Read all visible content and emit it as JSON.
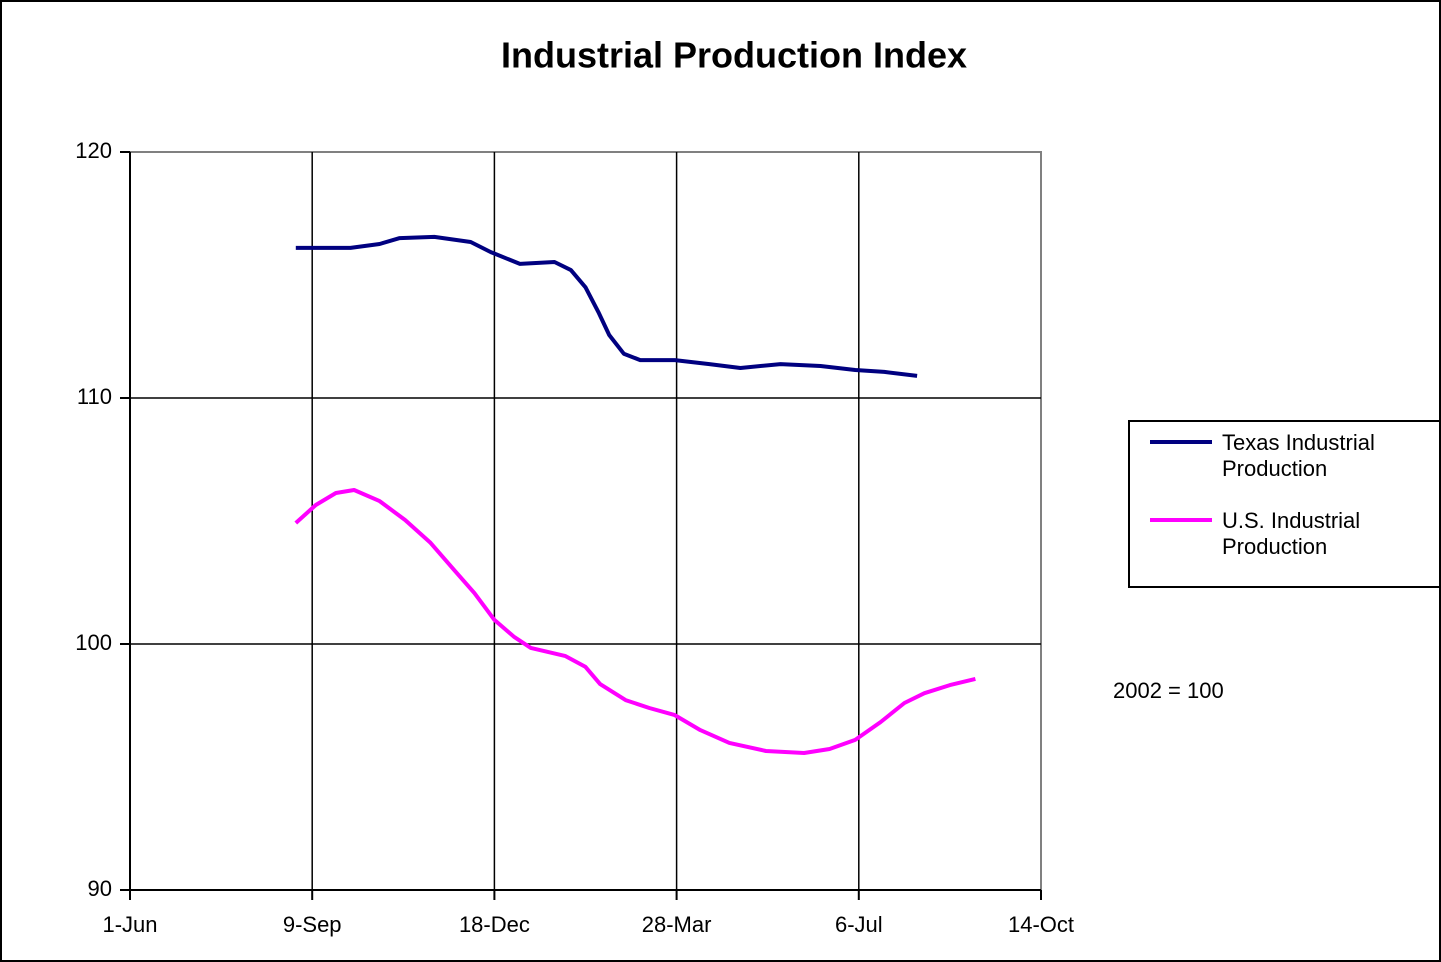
{
  "chart_data": {
    "type": "line",
    "title": "Industrial Production Index",
    "annotation": "2002 = 100",
    "xlim": [
      0,
      500
    ],
    "xticks": [
      {
        "value": 0,
        "label": "1-Jun"
      },
      {
        "value": 100,
        "label": "9-Sep"
      },
      {
        "value": 200,
        "label": "18-Dec"
      },
      {
        "value": 300,
        "label": "28-Mar"
      },
      {
        "value": 400,
        "label": "6-Jul"
      },
      {
        "value": 500,
        "label": "14-Oct"
      }
    ],
    "ylim": [
      90,
      120
    ],
    "yticks": [
      90,
      100,
      110,
      120
    ],
    "grid": true,
    "legend": "right",
    "series": [
      {
        "name": "Texas Industrial Production",
        "color": "#000080",
        "x": [
          91,
          121,
          137,
          148,
          167,
          187,
          198,
          214,
          233,
          242,
          250,
          257,
          263,
          271,
          280,
          299,
          318,
          335,
          357,
          379,
          398,
          414,
          432
        ],
        "values": [
          116.1,
          116.1,
          116.26,
          116.5,
          116.55,
          116.34,
          115.93,
          115.45,
          115.53,
          115.2,
          114.5,
          113.5,
          112.56,
          111.8,
          111.54,
          111.54,
          111.38,
          111.22,
          111.38,
          111.3,
          111.14,
          111.06,
          110.9
        ]
      },
      {
        "name": "U.S. Industrial Production",
        "color": "#ff00ff",
        "x": [
          91,
          102,
          113,
          123,
          137,
          151,
          165,
          178,
          189,
          200,
          211,
          220,
          239,
          250,
          258,
          272,
          285,
          299,
          313,
          329,
          349,
          370,
          384,
          398,
          412,
          425,
          436,
          450,
          464
        ],
        "values": [
          104.92,
          105.65,
          106.14,
          106.26,
          105.81,
          105.04,
          104.11,
          103.0,
          102.07,
          100.98,
          100.28,
          99.84,
          99.51,
          99.07,
          98.37,
          97.72,
          97.4,
          97.11,
          96.5,
          95.98,
          95.65,
          95.57,
          95.73,
          96.1,
          96.83,
          97.6,
          98.0,
          98.33,
          98.58
        ]
      }
    ]
  }
}
